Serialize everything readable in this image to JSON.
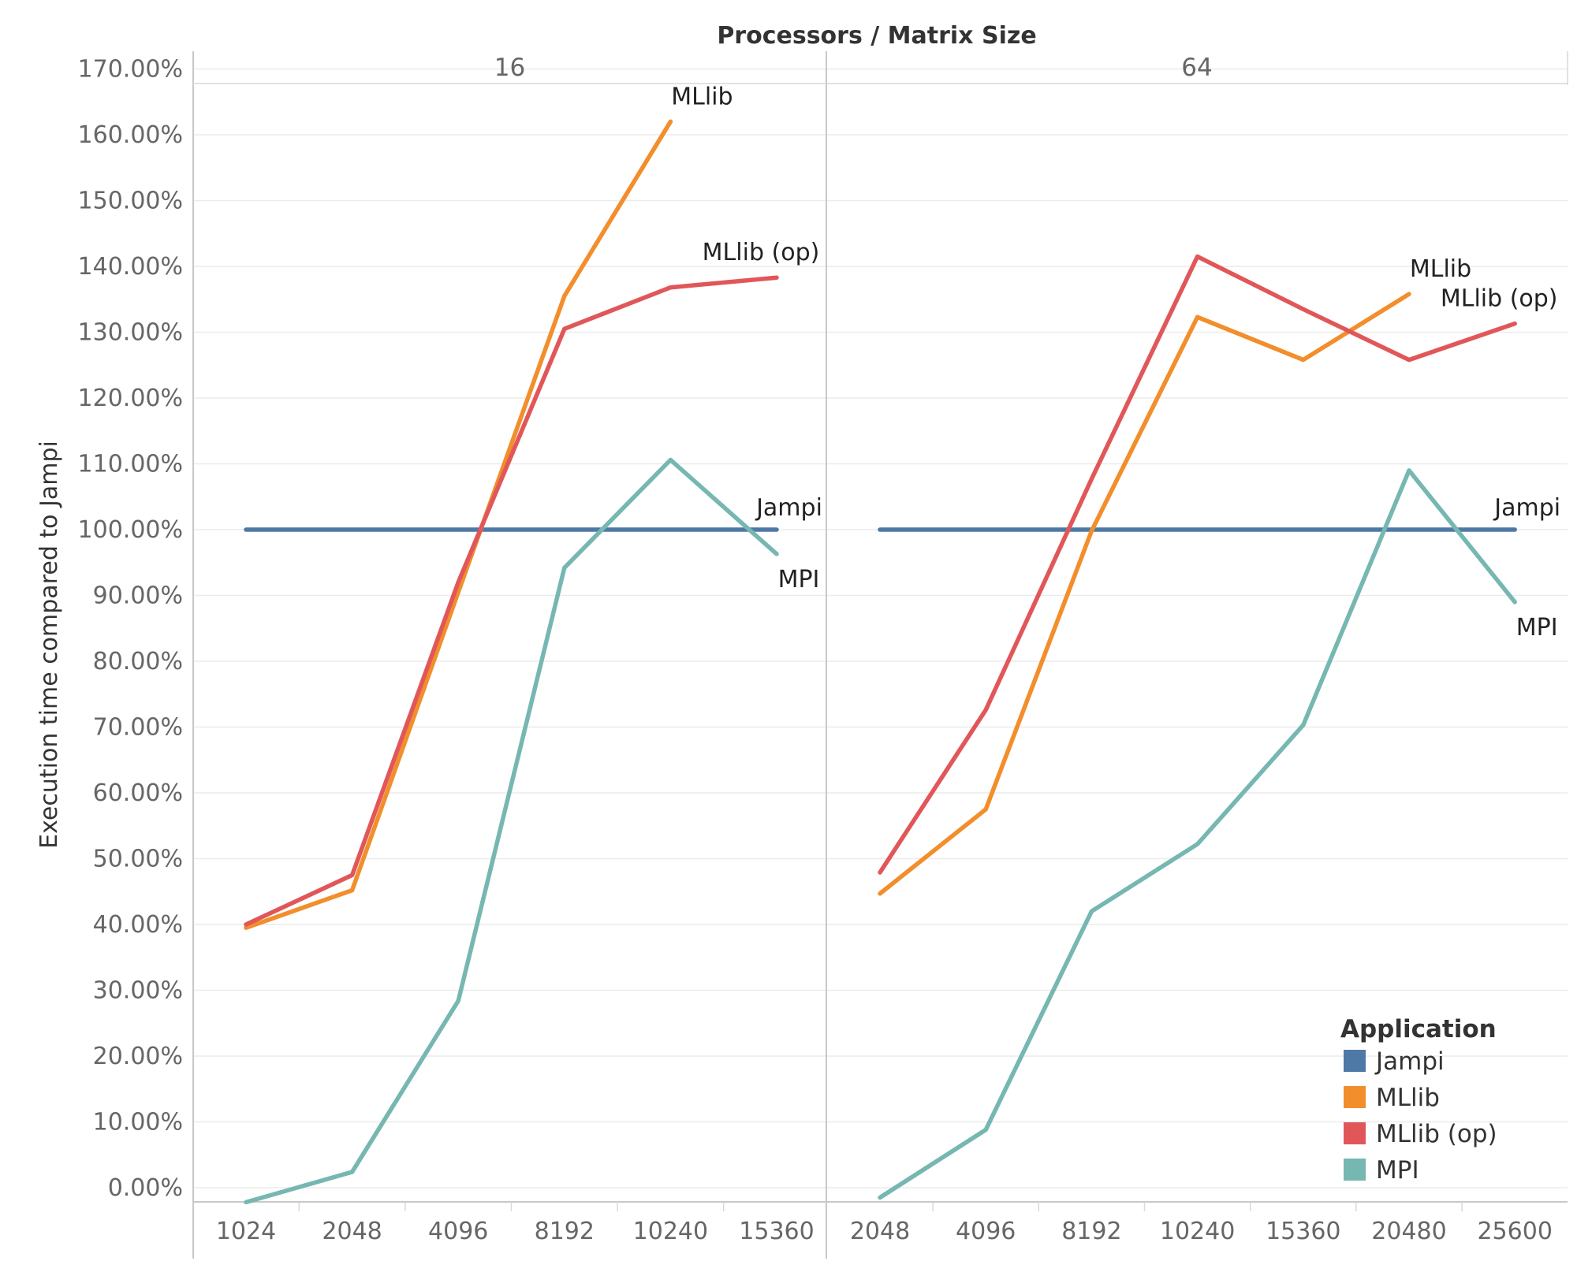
{
  "chart_data": {
    "type": "line",
    "title": "Processors / Matrix Size",
    "ylabel": "Execution time compared to Jampi",
    "ylim": [
      -3,
      175
    ],
    "y_ticks": [
      "0.00%",
      "10.00%",
      "20.00%",
      "30.00%",
      "40.00%",
      "50.00%",
      "60.00%",
      "70.00%",
      "80.00%",
      "90.00%",
      "100.00%",
      "110.00%",
      "120.00%",
      "130.00%",
      "140.00%",
      "150.00%",
      "160.00%",
      "170.00%"
    ],
    "legend": {
      "title": "Application",
      "position": "bottom-right",
      "items": [
        {
          "name": "Jampi",
          "color": "#4e79a7"
        },
        {
          "name": "MLlib",
          "color": "#f28e2b"
        },
        {
          "name": "MLlib (op)",
          "color": "#e15759"
        },
        {
          "name": "MPI",
          "color": "#76b7b2"
        }
      ]
    },
    "panels": [
      {
        "processors": "16",
        "categories": [
          "1024",
          "2048",
          "4096",
          "8192",
          "10240",
          "15360"
        ],
        "series": [
          {
            "name": "Jampi",
            "label": "Jampi",
            "color": "#4e79a7",
            "values": [
              100,
              100,
              100,
              100,
              100,
              100
            ]
          },
          {
            "name": "MLlib",
            "label": "MLlib",
            "color": "#f28e2b",
            "values": [
              39.5,
              45.2,
              90.5,
              135.5,
              162,
              null
            ]
          },
          {
            "name": "MLlib (op)",
            "label": "MLlib (op)",
            "color": "#e15759",
            "values": [
              40,
              47.5,
              92,
              130.5,
              136.8,
              138.3
            ]
          },
          {
            "name": "MPI",
            "label": "MPI",
            "color": "#76b7b2",
            "values": [
              -2.2,
              2.4,
              28.4,
              94.2,
              110.6,
              96.3
            ]
          }
        ]
      },
      {
        "processors": "64",
        "categories": [
          "2048",
          "4096",
          "8192",
          "10240",
          "15360",
          "20480",
          "25600"
        ],
        "series": [
          {
            "name": "Jampi",
            "label": "Jampi",
            "color": "#4e79a7",
            "values": [
              100,
              100,
              100,
              100,
              100,
              100,
              100
            ]
          },
          {
            "name": "MLlib",
            "label": "MLlib",
            "color": "#f28e2b",
            "values": [
              44.7,
              57.5,
              99.8,
              132.3,
              125.8,
              135.8,
              null
            ]
          },
          {
            "name": "MLlib (op)",
            "label": "MLlib (op)",
            "color": "#e15759",
            "values": [
              47.9,
              72.6,
              107.7,
              141.5,
              133.5,
              125.8,
              131.3
            ]
          },
          {
            "name": "MPI",
            "label": "MPI",
            "color": "#76b7b2",
            "values": [
              -1.5,
              8.8,
              42,
              52.2,
              70.3,
              109,
              89
            ]
          }
        ]
      }
    ]
  }
}
